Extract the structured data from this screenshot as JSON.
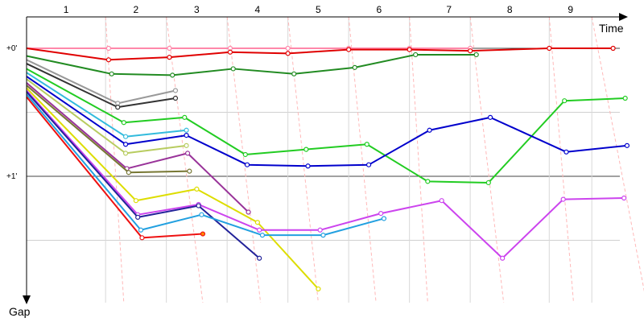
{
  "chart_data": {
    "type": "line",
    "title": "",
    "xlabel": "Time",
    "ylabel": "Gap",
    "x_ticks": [
      "1",
      "2",
      "3",
      "4",
      "5",
      "6",
      "7",
      "8",
      "9"
    ],
    "y_ticks": [
      {
        "value": 0,
        "label": "+0'"
      },
      {
        "value": 1,
        "label": "+1'"
      }
    ],
    "ylim": [
      -0.04,
      1.93
    ],
    "xlim": [
      0,
      10.3
    ],
    "grid": true,
    "y_direction": "down",
    "series": [
      {
        "color": "#ff88aa",
        "points": [
          [
            0,
            0
          ],
          [
            1.35,
            0
          ],
          [
            2.35,
            0
          ],
          [
            3.35,
            0
          ],
          [
            4.3,
            0
          ],
          [
            5.3,
            0
          ],
          [
            6.3,
            0
          ],
          [
            7.3,
            0
          ]
        ],
        "end_marker": "open"
      },
      {
        "color": "#e00000",
        "points": [
          [
            0,
            0
          ],
          [
            1.35,
            0.09
          ],
          [
            2.35,
            0.07
          ],
          [
            3.35,
            0.03
          ],
          [
            4.3,
            0.04
          ],
          [
            5.3,
            0.01
          ],
          [
            6.3,
            0.01
          ],
          [
            7.3,
            0.02
          ],
          [
            8.6,
            0
          ],
          [
            9.65,
            0
          ]
        ],
        "end_marker": "open"
      },
      {
        "color": "#228b22",
        "points": [
          [
            0,
            0.06
          ],
          [
            1.4,
            0.2
          ],
          [
            2.4,
            0.21
          ],
          [
            3.4,
            0.16
          ],
          [
            4.4,
            0.2
          ],
          [
            5.4,
            0.15
          ],
          [
            6.4,
            0.05
          ],
          [
            7.4,
            0.05
          ]
        ],
        "end_marker": "open"
      },
      {
        "color": "#999999",
        "points": [
          [
            0,
            0.09
          ],
          [
            1.5,
            0.43
          ],
          [
            2.45,
            0.33
          ]
        ],
        "end_marker": "open"
      },
      {
        "color": "#333333",
        "points": [
          [
            0,
            0.12
          ],
          [
            1.5,
            0.46
          ],
          [
            2.45,
            0.39
          ]
        ],
        "end_marker": "open"
      },
      {
        "color": "#22cc22",
        "points": [
          [
            0,
            0.16
          ],
          [
            1.6,
            0.58
          ],
          [
            2.6,
            0.54
          ],
          [
            3.6,
            0.83
          ],
          [
            4.6,
            0.79
          ],
          [
            5.6,
            0.75
          ],
          [
            6.6,
            1.04
          ],
          [
            7.6,
            1.05
          ],
          [
            8.85,
            0.41
          ],
          [
            9.85,
            0.39
          ]
        ],
        "end_marker": "open"
      },
      {
        "color": "#33bbdd",
        "points": [
          [
            0,
            0.19
          ],
          [
            1.63,
            0.69
          ],
          [
            2.63,
            0.64
          ]
        ],
        "end_marker": "open"
      },
      {
        "color": "#0000cc",
        "points": [
          [
            0,
            0.22
          ],
          [
            1.63,
            0.75
          ],
          [
            2.63,
            0.68
          ],
          [
            3.63,
            0.91
          ],
          [
            4.63,
            0.92
          ],
          [
            5.63,
            0.91
          ],
          [
            6.63,
            0.64
          ],
          [
            7.63,
            0.54
          ],
          [
            8.88,
            0.81
          ],
          [
            9.88,
            0.76
          ]
        ],
        "end_marker": "open"
      },
      {
        "color": "#b8cc60",
        "points": [
          [
            0,
            0.24
          ],
          [
            1.63,
            0.82
          ],
          [
            2.63,
            0.76
          ]
        ],
        "end_marker": "open"
      },
      {
        "color": "#993399",
        "points": [
          [
            0,
            0.27
          ],
          [
            1.65,
            0.94
          ],
          [
            2.65,
            0.82
          ],
          [
            3.65,
            1.28
          ]
        ],
        "end_marker": "open"
      },
      {
        "color": "#777733",
        "points": [
          [
            0,
            0.29
          ],
          [
            1.68,
            0.97
          ],
          [
            2.68,
            0.96
          ]
        ],
        "end_marker": "open"
      },
      {
        "color": "#dddd00",
        "points": [
          [
            0,
            0.31
          ],
          [
            1.8,
            1.19
          ],
          [
            2.8,
            1.1
          ],
          [
            3.8,
            1.36
          ],
          [
            4.8,
            1.88
          ]
        ],
        "end_marker": "open"
      },
      {
        "color": "#cc44ee",
        "points": [
          [
            0,
            0.33
          ],
          [
            1.83,
            1.3
          ],
          [
            2.83,
            1.22
          ],
          [
            3.83,
            1.42
          ],
          [
            4.83,
            1.42
          ],
          [
            5.83,
            1.29
          ],
          [
            6.83,
            1.19
          ],
          [
            7.83,
            1.64
          ],
          [
            8.83,
            1.18
          ],
          [
            9.83,
            1.17
          ]
        ],
        "end_marker": "open"
      },
      {
        "color": "#222299",
        "points": [
          [
            0,
            0.34
          ],
          [
            1.83,
            1.32
          ],
          [
            2.83,
            1.23
          ],
          [
            3.83,
            1.64
          ]
        ],
        "end_marker": "open"
      },
      {
        "color": "#22a0e0",
        "points": [
          [
            0,
            0.36
          ],
          [
            1.88,
            1.42
          ],
          [
            2.88,
            1.3
          ],
          [
            3.88,
            1.46
          ],
          [
            4.88,
            1.46
          ],
          [
            5.88,
            1.33
          ]
        ],
        "end_marker": "open"
      },
      {
        "color": "#ee1111",
        "points": [
          [
            0,
            0.38
          ],
          [
            1.9,
            1.48
          ],
          [
            2.9,
            1.45
          ]
        ],
        "end_marker": "filled",
        "end_marker_fill": "#ff8800"
      }
    ]
  }
}
